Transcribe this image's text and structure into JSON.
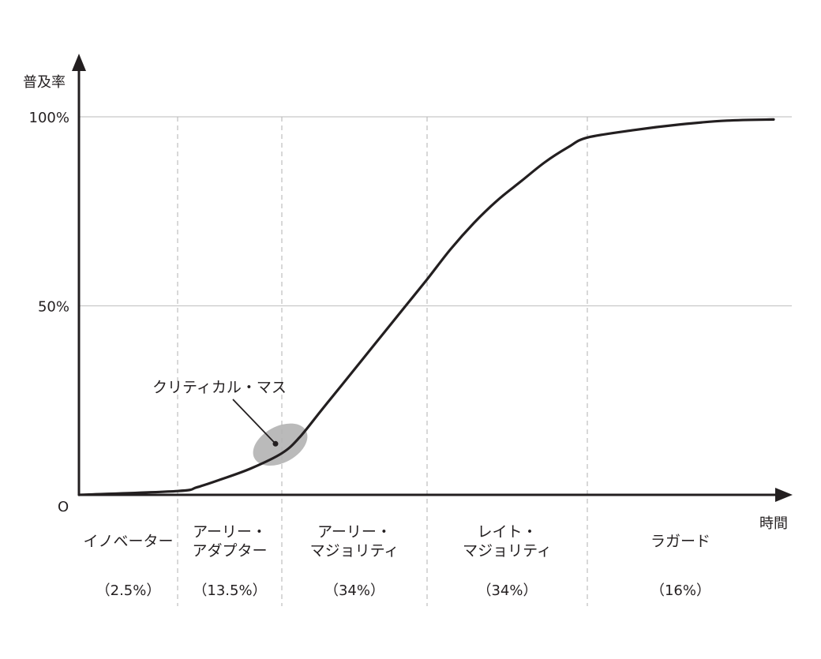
{
  "chart_data": {
    "type": "line",
    "ylabel": "普及率",
    "xlabel": "時間",
    "origin_label": "O",
    "ylim": [
      0,
      100
    ],
    "y_ticks": [
      {
        "value": 100,
        "label": "100%"
      },
      {
        "value": 50,
        "label": "50%"
      }
    ],
    "x_unit_range": [
      0,
      100
    ],
    "dividers": [
      2.5,
      16,
      50,
      84
    ],
    "segments": [
      {
        "lines": [
          "イノベーター"
        ],
        "share": "（2.5%）",
        "from": 0,
        "to": 2.5
      },
      {
        "lines": [
          "アーリー・",
          "アダプター"
        ],
        "share": "（13.5%）",
        "from": 2.5,
        "to": 16
      },
      {
        "lines": [
          "アーリー・",
          "マジョリティ"
        ],
        "share": "（34%）",
        "from": 16,
        "to": 50
      },
      {
        "lines": [
          "レイト・",
          "マジョリティ"
        ],
        "share": "（34%）",
        "from": 50,
        "to": 84
      },
      {
        "lines": [
          "ラガード"
        ],
        "share": "（16%）",
        "from": 84,
        "to": 100
      }
    ],
    "series": [
      {
        "x": [
          0,
          2.5,
          5,
          8,
          12,
          16,
          20,
          25,
          30,
          35,
          40,
          45,
          50,
          55,
          60,
          65,
          70,
          75,
          80,
          84,
          88,
          92,
          96,
          100
        ],
        "y": [
          0,
          1,
          2,
          4,
          7,
          11,
          15,
          22,
          29,
          36,
          43,
          50,
          57,
          65,
          72,
          78,
          83,
          88,
          92,
          94.5,
          96.5,
          98,
          99,
          99.3
        ]
      }
    ],
    "annotation": {
      "text": "クリティカル・マス",
      "x": 16,
      "y": 11
    },
    "grid": "horizontal at ticks"
  }
}
